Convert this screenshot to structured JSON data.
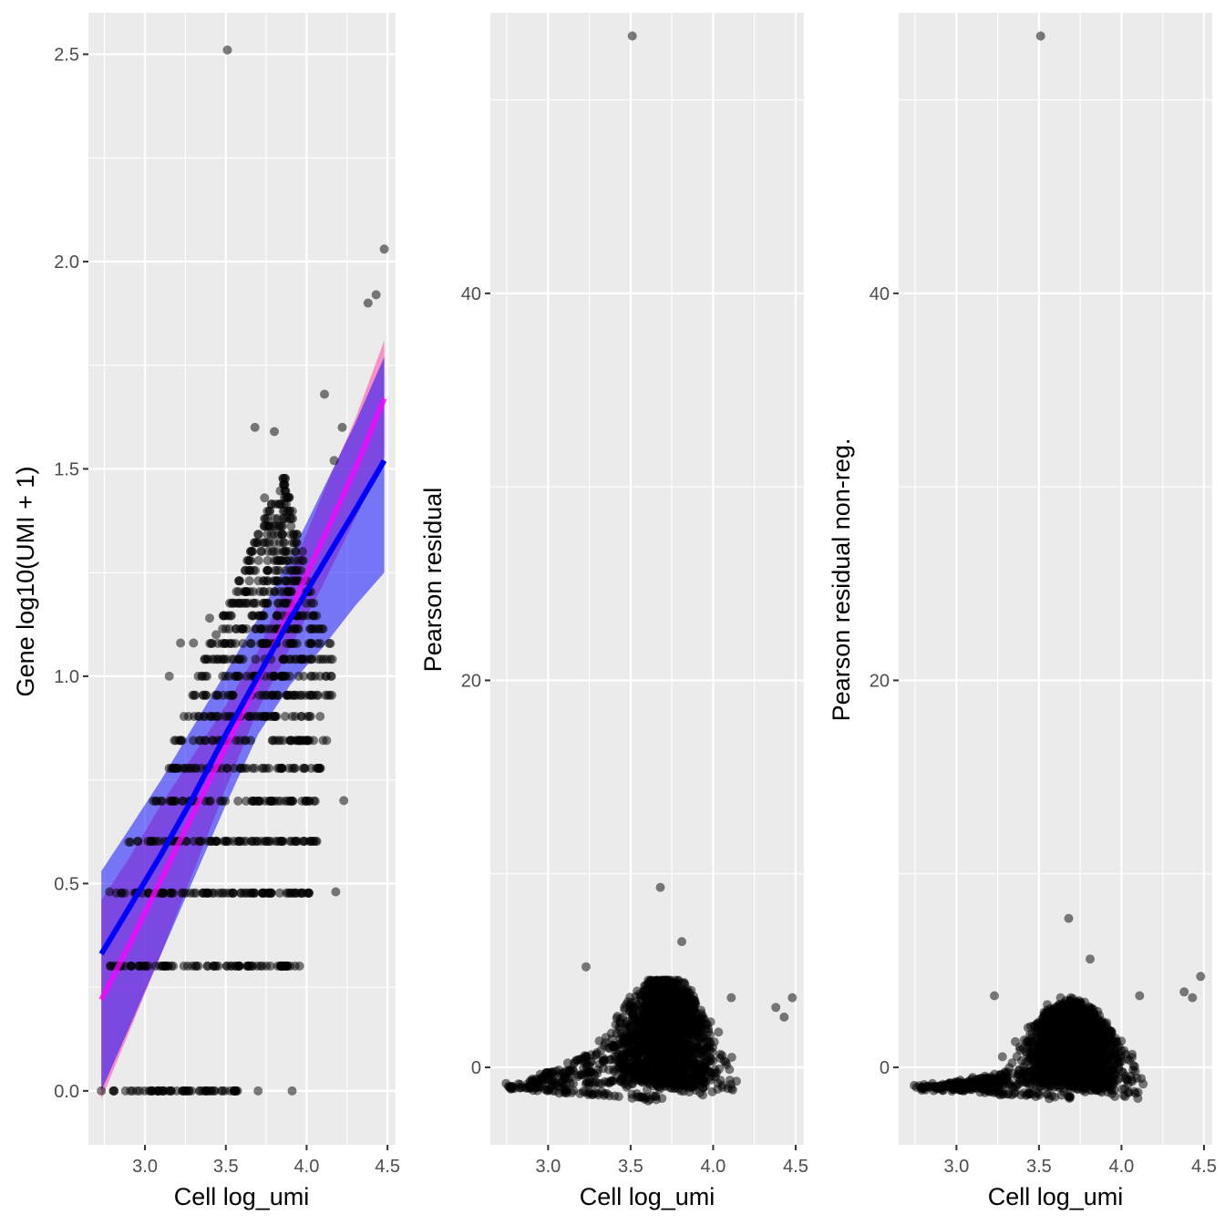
{
  "chart_data": [
    {
      "type": "scatter",
      "xlabel": "Cell log_umi",
      "ylabel": "Gene log10(UMI + 1)",
      "xlim": [
        2.65,
        4.55
      ],
      "ylim": [
        -0.13,
        2.6
      ],
      "xticks": [
        3.0,
        3.5,
        4.0,
        4.5
      ],
      "xtick_labels": [
        "3.0",
        "3.5",
        "4.0",
        "4.5"
      ],
      "yticks": [
        0.0,
        0.5,
        1.0,
        1.5,
        2.0,
        2.5
      ],
      "ytick_labels": [
        "0.0",
        "0.5",
        "1.0",
        "1.5",
        "2.0",
        "2.5"
      ],
      "grid": true,
      "point_color": "#000000",
      "point_alpha": 0.5,
      "dense_points": {
        "levels": [
          0.0,
          0.301,
          0.477,
          0.602,
          0.699,
          0.778,
          0.845,
          0.903,
          0.954,
          1.0,
          1.041,
          1.079,
          1.114,
          1.146,
          1.176,
          1.204,
          1.23,
          1.255,
          1.279,
          1.301,
          1.322,
          1.342,
          1.362,
          1.38,
          1.398,
          1.415,
          1.431,
          1.447,
          1.462,
          1.477
        ],
        "x_ranges": [
          [
            2.73,
            3.62
          ],
          [
            2.78,
            3.96
          ],
          [
            2.8,
            4.02
          ],
          [
            2.95,
            4.07
          ],
          [
            3.05,
            4.1
          ],
          [
            3.12,
            4.12
          ],
          [
            3.18,
            4.13
          ],
          [
            3.22,
            4.14
          ],
          [
            3.27,
            4.16
          ],
          [
            3.31,
            4.17
          ],
          [
            3.36,
            4.16
          ],
          [
            3.4,
            4.15
          ],
          [
            3.44,
            4.12
          ],
          [
            3.48,
            4.09
          ],
          [
            3.52,
            4.06
          ],
          [
            3.55,
            4.04
          ],
          [
            3.58,
            4.02
          ],
          [
            3.61,
            4.0
          ],
          [
            3.63,
            3.99
          ],
          [
            3.65,
            3.98
          ],
          [
            3.67,
            3.96
          ],
          [
            3.69,
            3.95
          ],
          [
            3.71,
            3.94
          ],
          [
            3.73,
            3.93
          ],
          [
            3.75,
            3.92
          ],
          [
            3.77,
            3.91
          ],
          [
            3.79,
            3.9
          ],
          [
            3.81,
            3.89
          ],
          [
            3.83,
            3.88
          ],
          [
            3.85,
            3.87
          ]
        ]
      },
      "outliers": [
        {
          "x": 3.51,
          "y": 2.51
        },
        {
          "x": 4.48,
          "y": 2.03
        },
        {
          "x": 4.43,
          "y": 1.92
        },
        {
          "x": 4.38,
          "y": 1.9
        },
        {
          "x": 4.11,
          "y": 1.68
        },
        {
          "x": 3.68,
          "y": 1.6
        },
        {
          "x": 3.8,
          "y": 1.59
        },
        {
          "x": 4.22,
          "y": 1.6
        },
        {
          "x": 4.17,
          "y": 1.52
        },
        {
          "x": 3.74,
          "y": 1.43
        },
        {
          "x": 3.22,
          "y": 1.08
        },
        {
          "x": 3.3,
          "y": 1.08
        },
        {
          "x": 3.4,
          "y": 1.14
        },
        {
          "x": 3.44,
          "y": 1.1
        },
        {
          "x": 3.15,
          "y": 1.0
        },
        {
          "x": 4.23,
          "y": 0.7
        },
        {
          "x": 4.18,
          "y": 0.48
        },
        {
          "x": 2.91,
          "y": 0.6
        },
        {
          "x": 2.9,
          "y": 0.6
        },
        {
          "x": 2.78,
          "y": 0.48
        },
        {
          "x": 3.91,
          "y": 0.0
        },
        {
          "x": 3.7,
          "y": 0.0
        }
      ],
      "fits": [
        {
          "color": "#ff00ff",
          "band_color": "#ff69b4",
          "band_opacity": 0.7,
          "x": [
            2.73,
            2.9,
            3.1,
            3.3,
            3.5,
            3.7,
            3.9,
            4.1,
            4.3,
            4.48
          ],
          "y": [
            0.22,
            0.35,
            0.51,
            0.67,
            0.83,
            0.99,
            1.16,
            1.33,
            1.5,
            1.67
          ],
          "lower": [
            -0.02,
            0.14,
            0.33,
            0.53,
            0.73,
            0.92,
            1.07,
            1.22,
            1.38,
            1.53
          ],
          "upper": [
            0.46,
            0.56,
            0.69,
            0.81,
            0.93,
            1.06,
            1.25,
            1.44,
            1.62,
            1.81
          ]
        },
        {
          "color": "#0000ff",
          "band_color": "#0000ff",
          "band_opacity": 0.5,
          "x": [
            2.73,
            2.9,
            3.1,
            3.3,
            3.5,
            3.7,
            3.9,
            4.1,
            4.3,
            4.48
          ],
          "y": [
            0.33,
            0.44,
            0.57,
            0.71,
            0.86,
            1.0,
            1.14,
            1.27,
            1.4,
            1.52
          ],
          "lower": [
            0.0,
            0.15,
            0.33,
            0.51,
            0.69,
            0.86,
            0.98,
            1.07,
            1.17,
            1.25
          ],
          "upper": [
            0.53,
            0.63,
            0.75,
            0.88,
            1.01,
            1.14,
            1.29,
            1.45,
            1.61,
            1.77
          ]
        }
      ]
    },
    {
      "type": "scatter",
      "xlabel": "Cell log_umi",
      "ylabel": "Pearson residual",
      "xlim": [
        2.65,
        4.55
      ],
      "ylim": [
        -4,
        54.5
      ],
      "xticks": [
        3.0,
        3.5,
        4.0,
        4.5
      ],
      "xtick_labels": [
        "3.0",
        "3.5",
        "4.0",
        "4.5"
      ],
      "yticks": [
        0,
        20,
        40
      ],
      "ytick_labels": [
        "0",
        "20",
        "40"
      ],
      "grid": true,
      "point_color": "#000000",
      "point_alpha": 0.5,
      "outliers": [
        {
          "x": 3.51,
          "y": 53.3
        },
        {
          "x": 3.68,
          "y": 9.3
        },
        {
          "x": 3.81,
          "y": 6.5
        },
        {
          "x": 4.48,
          "y": 3.6
        },
        {
          "x": 4.43,
          "y": 2.6
        },
        {
          "x": 4.38,
          "y": 3.1
        },
        {
          "x": 4.11,
          "y": 3.6
        },
        {
          "x": 3.23,
          "y": 5.2
        }
      ]
    },
    {
      "type": "scatter",
      "xlabel": "Cell log_umi",
      "ylabel": "Pearson residual non-reg.",
      "xlim": [
        2.65,
        4.55
      ],
      "ylim": [
        -4,
        54.5
      ],
      "xticks": [
        3.0,
        3.5,
        4.0,
        4.5
      ],
      "xtick_labels": [
        "3.0",
        "3.5",
        "4.0",
        "4.5"
      ],
      "yticks": [
        0,
        20,
        40
      ],
      "ytick_labels": [
        "0",
        "20",
        "40"
      ],
      "grid": true,
      "point_color": "#000000",
      "point_alpha": 0.5,
      "outliers": [
        {
          "x": 3.51,
          "y": 53.3
        },
        {
          "x": 3.68,
          "y": 7.7
        },
        {
          "x": 3.81,
          "y": 5.6
        },
        {
          "x": 4.48,
          "y": 4.7
        },
        {
          "x": 4.43,
          "y": 3.6
        },
        {
          "x": 4.38,
          "y": 3.9
        },
        {
          "x": 4.11,
          "y": 3.7
        },
        {
          "x": 3.23,
          "y": 3.7
        }
      ]
    }
  ]
}
